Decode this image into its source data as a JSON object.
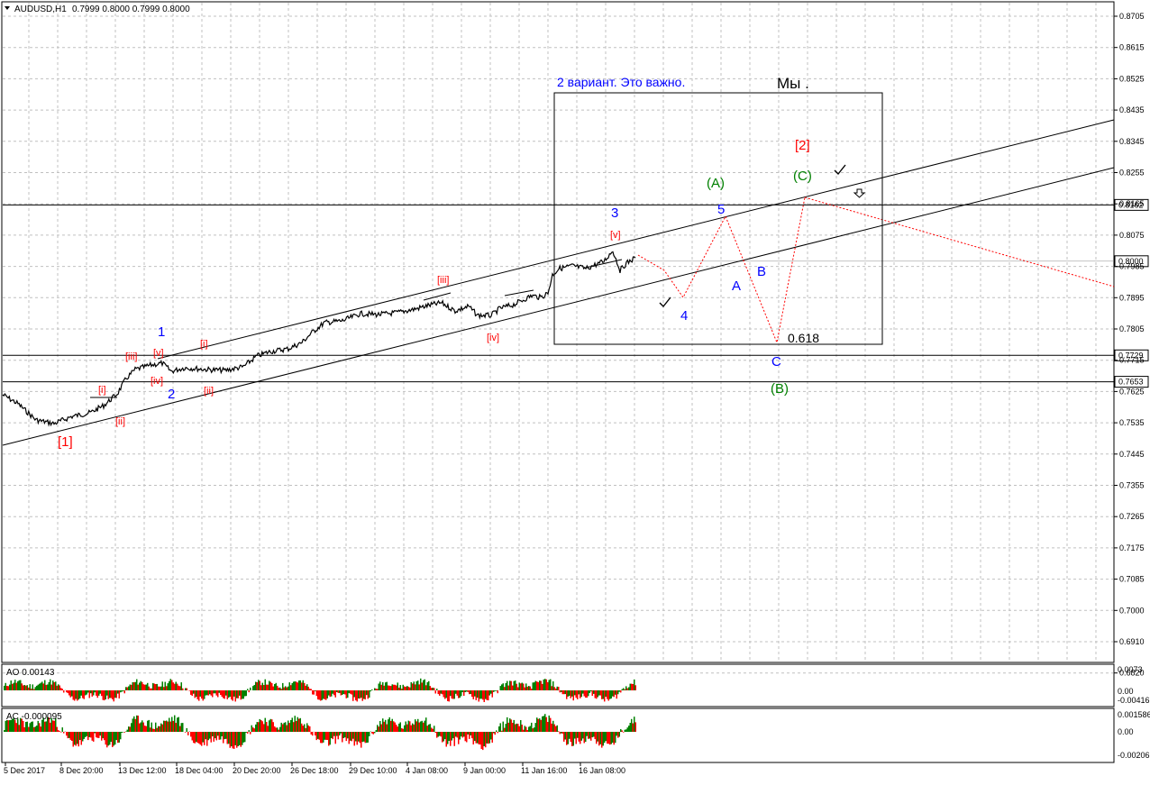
{
  "window": {
    "symbol_title": "AUDUSD,H1",
    "ohlc": "0.7999 0.8000 0.7999 0.8000",
    "dropdown_icon": "triangle-down-icon"
  },
  "indicators": {
    "ao": {
      "label": "AO 0.00143",
      "ticks": [
        "0.0073",
        "0.00",
        "-0.00416"
      ],
      "up_color": "#008000",
      "down_color": "#ff0000"
    },
    "ac": {
      "label": "AC -0.000095",
      "ticks": [
        "0.001586",
        "0.00",
        "-0.00206"
      ],
      "up_color": "#008000",
      "down_color": "#ff0000"
    }
  },
  "price_axis": {
    "ticks": [
      "0.8705",
      "0.8615",
      "0.8525",
      "0.8435",
      "0.8345",
      "0.8255",
      "0.8165",
      "0.8075",
      "0.7985",
      "0.7895",
      "0.7805",
      "0.7715",
      "0.7625",
      "0.7535",
      "0.7445",
      "0.7355",
      "0.7265",
      "0.7175",
      "0.7085",
      "0.7000",
      "0.6910",
      "0.6820"
    ],
    "levels": [
      {
        "label": "0.8162",
        "price": 0.8162
      },
      {
        "label": "0.8000",
        "price": 0.8,
        "current": true
      },
      {
        "label": "0.7729",
        "price": 0.7729
      },
      {
        "label": "0.7653",
        "price": 0.7653
      }
    ]
  },
  "time_axis": {
    "labels": [
      "5 Dec 2017",
      "8 Dec 20:00",
      "13 Dec 12:00",
      "18 Dec 04:00",
      "20 Dec 20:00",
      "26 Dec 18:00",
      "29 Dec 10:00",
      "4 Jan 08:00",
      "9 Jan 00:00",
      "11 Jan 16:00",
      "16 Jan 08:00"
    ]
  },
  "chart_data": {
    "type": "line",
    "title": "AUDUSD,H1",
    "ylim": [
      0.679,
      0.874
    ],
    "grid": true,
    "series": [
      {
        "name": "AUDUSD,H1",
        "x": [
          "5 Dec 2017",
          "8 Dec 20:00",
          "13 Dec 12:00",
          "18 Dec 04:00",
          "20 Dec 20:00",
          "26 Dec 18:00",
          "29 Dec 10:00",
          "4 Jan 08:00",
          "9 Jan 00:00",
          "11 Jan 16:00",
          "16 Jan 08:00"
        ],
        "values": [
          0.761,
          0.755,
          0.768,
          0.766,
          0.774,
          0.783,
          0.784,
          0.7845,
          0.782,
          0.798,
          0.7995
        ]
      }
    ],
    "annotations": {
      "note_text": "2 вариант. Это важно.",
      "note_text2": "Мы .",
      "fib_label": "0.618",
      "wave_labels": [
        {
          "t": "[1]",
          "color": "#ff0000"
        },
        {
          "t": "[i]",
          "color": "#ff0000"
        },
        {
          "t": "[ii]",
          "color": "#ff0000"
        },
        {
          "t": "[iii]",
          "color": "#ff0000"
        },
        {
          "t": "[iv]",
          "color": "#ff0000"
        },
        {
          "t": "[v]",
          "color": "#ff0000"
        },
        {
          "t": "1",
          "color": "#0000ff"
        },
        {
          "t": "2",
          "color": "#0000ff"
        },
        {
          "t": "[i]",
          "color": "#ff0000"
        },
        {
          "t": "[ii]",
          "color": "#ff0000"
        },
        {
          "t": "[iii]",
          "color": "#ff0000"
        },
        {
          "t": "[iv]",
          "color": "#ff0000"
        },
        {
          "t": "[v]",
          "color": "#ff0000"
        },
        {
          "t": "3",
          "color": "#0000ff"
        },
        {
          "t": "4",
          "color": "#0000ff"
        },
        {
          "t": "5",
          "color": "#0000ff"
        },
        {
          "t": "(A)",
          "color": "#008000"
        },
        {
          "t": "A",
          "color": "#0000ff"
        },
        {
          "t": "B",
          "color": "#0000ff"
        },
        {
          "t": "C",
          "color": "#0000ff"
        },
        {
          "t": "(B)",
          "color": "#008000"
        },
        {
          "t": "(C)",
          "color": "#008000"
        },
        {
          "t": "[2]",
          "color": "#ff0000"
        }
      ]
    }
  }
}
